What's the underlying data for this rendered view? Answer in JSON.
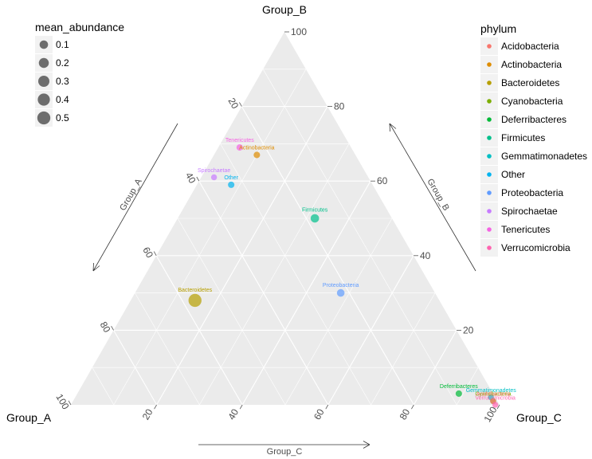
{
  "chart_data": {
    "type": "ternary-scatter",
    "vertices": {
      "top": "Group_B",
      "left": "Group_A",
      "right": "Group_C"
    },
    "axis_titles": {
      "left": "Group_A",
      "right": "Group_B",
      "bottom": "Group_C"
    },
    "ticks": [
      "20",
      "40",
      "60",
      "80",
      "100"
    ],
    "grid": true,
    "legend_position": "right",
    "size_legend": {
      "title": "mean_abundance",
      "entries": [
        {
          "label": "0.1",
          "value": 0.1
        },
        {
          "label": "0.2",
          "value": 0.2
        },
        {
          "label": "0.3",
          "value": 0.3
        },
        {
          "label": "0.4",
          "value": 0.4
        },
        {
          "label": "0.5",
          "value": 0.5
        }
      ]
    },
    "color_legend": {
      "title": "phylum",
      "entries": [
        {
          "label": "Acidobacteria",
          "color": "#f8766d"
        },
        {
          "label": "Actinobacteria",
          "color": "#de8c00"
        },
        {
          "label": "Bacteroidetes",
          "color": "#b79f00"
        },
        {
          "label": "Cyanobacteria",
          "color": "#7cae00"
        },
        {
          "label": "Deferribacteres",
          "color": "#00ba38"
        },
        {
          "label": "Firmicutes",
          "color": "#00c08b"
        },
        {
          "label": "Gemmatimonadetes",
          "color": "#00bfc4"
        },
        {
          "label": "Other",
          "color": "#00b4f0"
        },
        {
          "label": "Proteobacteria",
          "color": "#619cff"
        },
        {
          "label": "Spirochaetae",
          "color": "#c77cff"
        },
        {
          "label": "Tenericutes",
          "color": "#f564e3"
        },
        {
          "label": "Verrucomicrobia",
          "color": "#ff64b0"
        }
      ]
    },
    "points": [
      {
        "label": "Tenericutes",
        "A": 26,
        "B": 69,
        "C": 5,
        "abundance": 0.02,
        "color": "#f564e3"
      },
      {
        "label": "Actinobacteria",
        "A": 23,
        "B": 67,
        "C": 10,
        "abundance": 0.02,
        "color": "#de8c00"
      },
      {
        "label": "Spirochaetae",
        "A": 36,
        "B": 61,
        "C": 3,
        "abundance": 0.01,
        "color": "#c77cff"
      },
      {
        "label": "Other",
        "A": 33,
        "B": 59,
        "C": 8,
        "abundance": 0.02,
        "color": "#00b4f0"
      },
      {
        "label": "Firmicutes",
        "A": 18,
        "B": 50,
        "C": 32,
        "abundance": 0.1,
        "color": "#00c08b"
      },
      {
        "label": "Proteobacteria",
        "A": 22,
        "B": 30,
        "C": 48,
        "abundance": 0.06,
        "color": "#619cff"
      },
      {
        "label": "Bacteroidetes",
        "A": 57,
        "B": 28,
        "C": 15,
        "abundance": 0.5,
        "color": "#b79f00"
      },
      {
        "label": "Deferribacteres",
        "A": 8,
        "B": 3,
        "C": 89,
        "abundance": 0.02,
        "color": "#00ba38"
      },
      {
        "label": "Gemmatimonadetes",
        "A": 1,
        "B": 2,
        "C": 97,
        "abundance": 0.01,
        "color": "#00bfc4"
      },
      {
        "label": "Cyanobacteria",
        "A": 1,
        "B": 1,
        "C": 98,
        "abundance": 0.01,
        "color": "#7cae00"
      },
      {
        "label": "Acidobacteria",
        "A": 1,
        "B": 1,
        "C": 98,
        "abundance": 0.01,
        "color": "#f8766d"
      },
      {
        "label": "Verrucomicrobia",
        "A": 1,
        "B": 0,
        "C": 99,
        "abundance": 0.01,
        "color": "#ff64b0"
      }
    ]
  }
}
